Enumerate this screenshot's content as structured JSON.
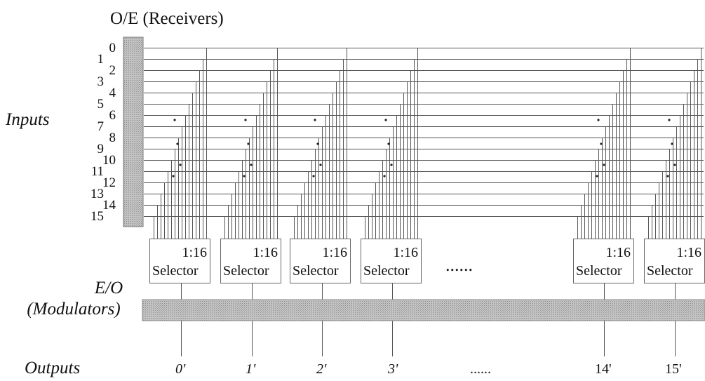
{
  "header": {
    "title": "O/E (Receivers)"
  },
  "labels": {
    "inputs": "Inputs",
    "eo_line1": "E/O",
    "eo_line2": "(Modulators)",
    "outputs": "Outputs",
    "selector_ellipsis": "......",
    "output_ellipsis": "......"
  },
  "inputs": [
    "0",
    "1",
    "2",
    "3",
    "4",
    "5",
    "6",
    "7",
    "8",
    "9",
    "10",
    "11",
    "12",
    "13",
    "14",
    "15"
  ],
  "selectors": [
    {
      "ratio": "1:16",
      "name": "Selector"
    },
    {
      "ratio": "1:16",
      "name": "Selector"
    },
    {
      "ratio": "1:16",
      "name": "Selector"
    },
    {
      "ratio": "1:16",
      "name": "Selector"
    },
    {
      "ratio": "1:16",
      "name": "Selector"
    },
    {
      "ratio": "1:16",
      "name": "Selector"
    }
  ],
  "outputs": [
    "0'",
    "1'",
    "2'",
    "3'",
    "14'",
    "15'"
  ],
  "colors": {
    "line": "#555555",
    "bar_fill": "#bdbdbd"
  }
}
